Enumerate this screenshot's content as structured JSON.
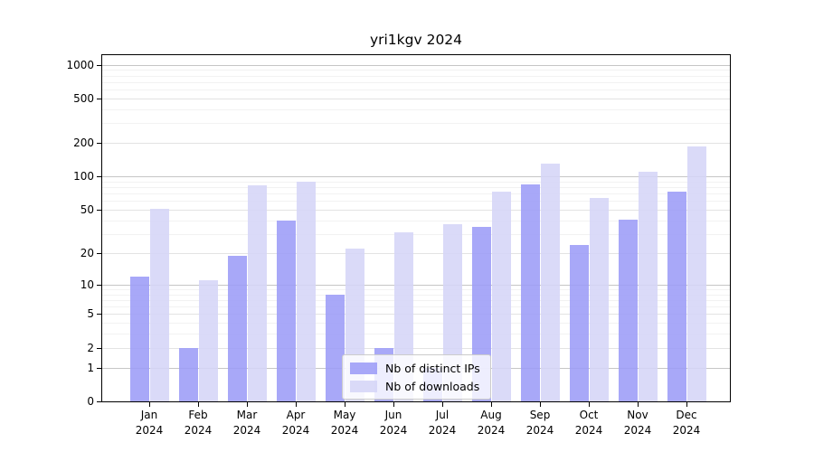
{
  "title": "yri1kgv 2024",
  "colors": {
    "ips_bar": "#9c9cf7",
    "downloads_bar": "#d5d5f7",
    "grid_power10": "#c6c6c6",
    "grid_labeled": "#e3e3e3",
    "grid_minor": "#f2f2f2",
    "axis": "#000000",
    "legend_border": "#cccccc"
  },
  "chart_data": {
    "type": "bar",
    "title": "yri1kgv 2024",
    "categories": [
      "Jan",
      "Feb",
      "Mar",
      "Apr",
      "May",
      "Jun",
      "Jul",
      "Aug",
      "Sep",
      "Oct",
      "Nov",
      "Dec"
    ],
    "category_year": "2024",
    "series": [
      {
        "name": "Nb of distinct IPs",
        "color": "#9c9cf7",
        "values": [
          12,
          2,
          19,
          40,
          8,
          2,
          1,
          35,
          85,
          24,
          41,
          73
        ]
      },
      {
        "name": "Nb of downloads",
        "color": "#d5d5f7",
        "values": [
          51,
          11,
          83,
          89,
          22,
          31,
          37,
          73,
          130,
          64,
          110,
          187
        ]
      }
    ],
    "y_ticks": [
      0,
      1,
      2,
      5,
      10,
      20,
      50,
      100,
      200,
      500,
      1000
    ],
    "y_minor_gridlines": [
      3,
      4,
      6,
      7,
      8,
      9,
      30,
      40,
      60,
      70,
      80,
      90,
      300,
      400,
      600,
      700,
      800,
      900
    ],
    "y_scale": "log10(1+x)",
    "ylim": [
      0,
      1230
    ],
    "xlabel": "",
    "ylabel": "",
    "grid": true,
    "legend_position": "lower-center-inside"
  }
}
